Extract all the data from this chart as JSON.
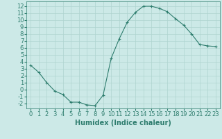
{
  "x": [
    0,
    1,
    2,
    3,
    4,
    5,
    6,
    7,
    8,
    9,
    10,
    11,
    12,
    13,
    14,
    15,
    16,
    17,
    18,
    19,
    20,
    21,
    22,
    23
  ],
  "y": [
    3.5,
    2.5,
    1.0,
    -0.2,
    -0.7,
    -1.8,
    -1.8,
    -2.2,
    -2.3,
    -0.8,
    4.5,
    7.3,
    9.7,
    11.1,
    12.0,
    12.0,
    11.7,
    11.2,
    10.2,
    9.3,
    8.0,
    6.5,
    6.3,
    6.2
  ],
  "line_color": "#2e7d6e",
  "bg_color": "#cce9e7",
  "grid_color": "#afd4d0",
  "xlabel": "Humidex (Indice chaleur)",
  "xlim": [
    -0.5,
    23.5
  ],
  "ylim": [
    -2.7,
    12.7
  ],
  "xticks": [
    0,
    1,
    2,
    3,
    4,
    5,
    6,
    7,
    8,
    9,
    10,
    11,
    12,
    13,
    14,
    15,
    16,
    17,
    18,
    19,
    20,
    21,
    22,
    23
  ],
  "yticks": [
    -2,
    -1,
    0,
    1,
    2,
    3,
    4,
    5,
    6,
    7,
    8,
    9,
    10,
    11,
    12
  ],
  "xlabel_fontsize": 7,
  "tick_fontsize": 6
}
